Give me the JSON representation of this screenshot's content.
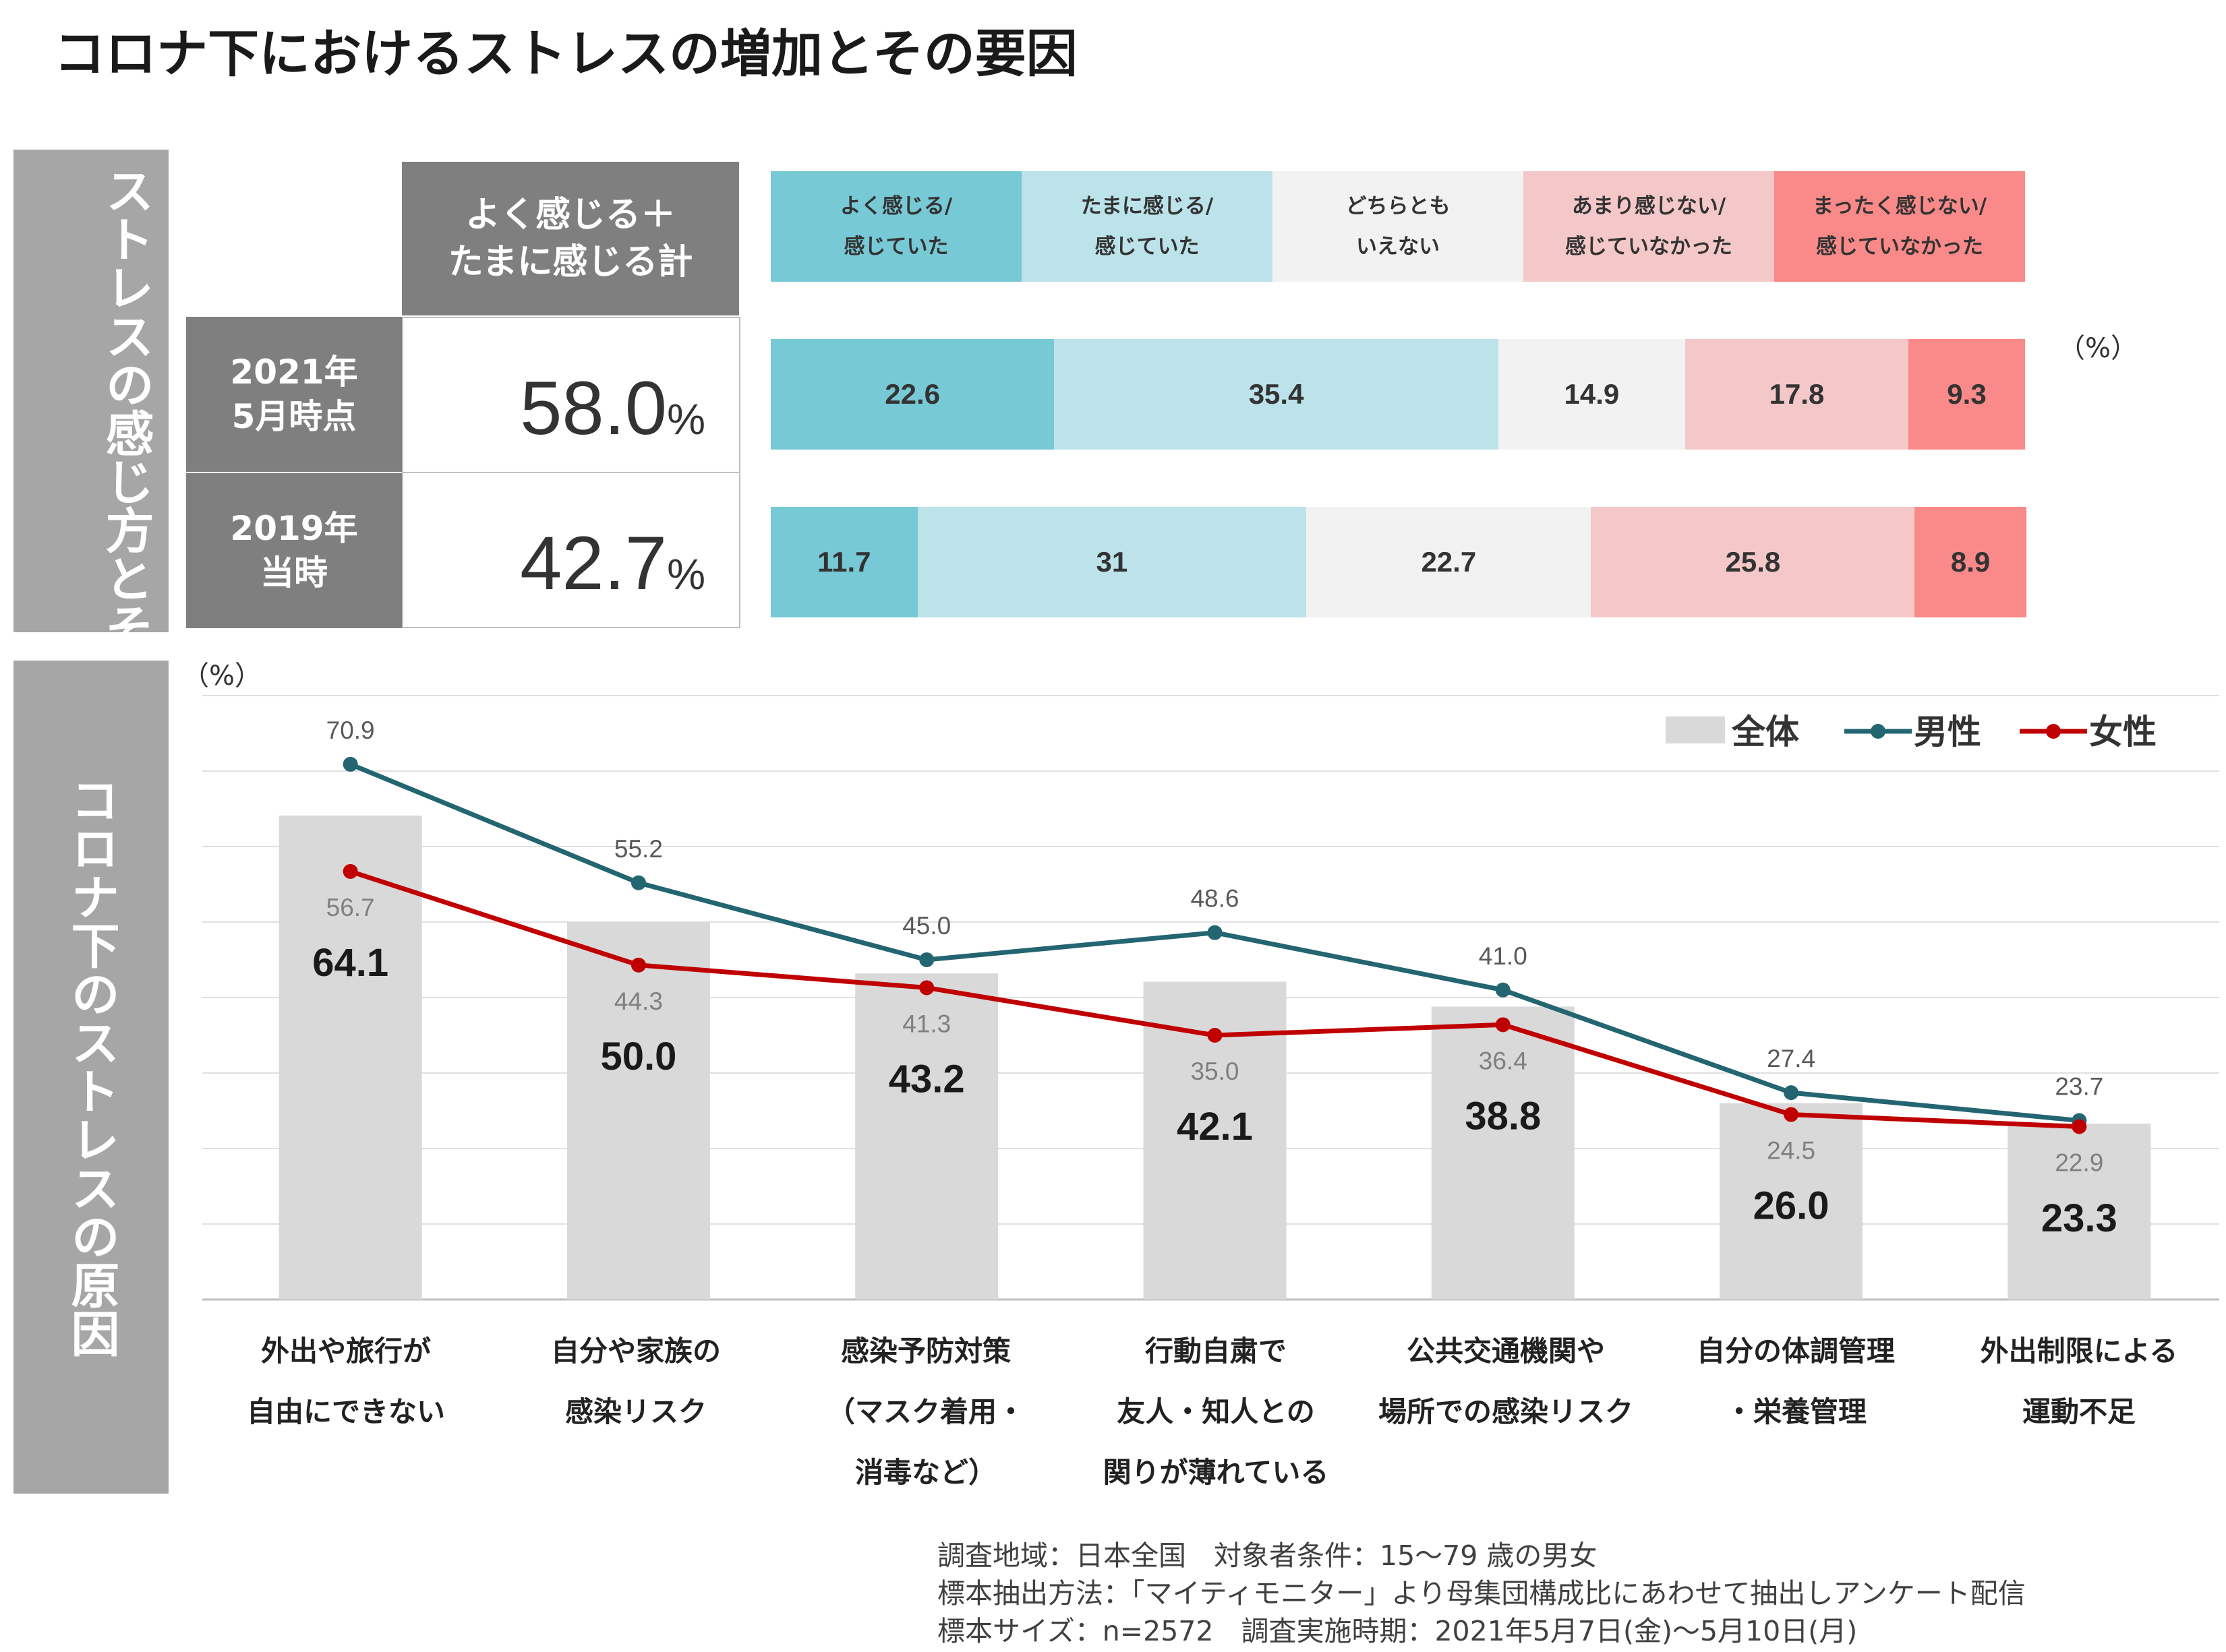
{
  "title": "コロナ下におけるストレスの増加とその要因",
  "panel_top": {
    "side_title": "ストレスの感じ方とその変化",
    "header_label_line1": "よく感じる＋",
    "header_label_line2": "たまに感じる計",
    "rows": [
      {
        "label_line1": "2021年",
        "label_line2": "5月時点",
        "total": "58.0",
        "unit": "%"
      },
      {
        "label_line1": "2019年",
        "label_line2": "当時",
        "total": "42.7",
        "unit": "%"
      }
    ],
    "legend": [
      {
        "line1": "よく感じる/",
        "line2": "感じていた",
        "color": "#76c9d5"
      },
      {
        "line1": "たまに感じる/",
        "line2": "感じていた",
        "color": "#bce3ea"
      },
      {
        "line1": "どちらとも",
        "line2": "いえない",
        "color": "#f2f2f2"
      },
      {
        "line1": "あまり感じない/",
        "line2": "感じていなかった",
        "color": "#f4c8c8"
      },
      {
        "line1": "まったく感じない/",
        "line2": "感じていなかった",
        "color": "#f98a89"
      }
    ],
    "unit_label": "（%）"
  },
  "panel_bottom": {
    "side_title": "コロナ下のストレスの原因",
    "unit_label": "（%）",
    "legend": {
      "all": "全体",
      "male": "男性",
      "female": "女性",
      "all_color": "#d9d9d9",
      "male_color": "#236570",
      "female_color": "#c00000"
    },
    "categories": [
      {
        "line1": "外出や旅行が",
        "line2": "自由にできない",
        "line3": ""
      },
      {
        "line1": "自分や家族の",
        "line2": "感染リスク",
        "line3": ""
      },
      {
        "line1": "感染予防対策",
        "line2": "（マスク着用・",
        "line3": "消毒など）"
      },
      {
        "line1": "行動自粛で",
        "line2": "友人・知人との",
        "line3": "関りが薄れている"
      },
      {
        "line1": "公共交通機関や",
        "line2": "場所での感染リスク",
        "line3": ""
      },
      {
        "line1": "自分の体調管理",
        "line2": "・栄養管理",
        "line3": ""
      },
      {
        "line1": "外出制限による",
        "line2": "運動不足",
        "line3": ""
      }
    ]
  },
  "chart_data": [
    {
      "type": "bar",
      "stacked": true,
      "orientation": "horizontal",
      "categories": [
        "2021年5月時点",
        "2019年当時"
      ],
      "series": [
        {
          "name": "よく感じる/感じていた",
          "values": [
            22.6,
            11.7
          ]
        },
        {
          "name": "たまに感じる/感じていた",
          "values": [
            35.4,
            31
          ]
        },
        {
          "name": "どちらともいえない",
          "values": [
            14.9,
            22.7
          ]
        },
        {
          "name": "あまり感じない/感じていなかった",
          "values": [
            17.8,
            25.8
          ]
        },
        {
          "name": "まったく感じない/感じていなかった",
          "values": [
            9.3,
            8.9
          ]
        }
      ],
      "value_labels": [
        [
          "22.6",
          "35.4",
          "14.9",
          "17.8",
          "9.3"
        ],
        [
          "11.7",
          "31",
          "22.7",
          "25.8",
          "8.9"
        ]
      ],
      "xlim": [
        0,
        100
      ]
    },
    {
      "type": "bar",
      "ylim": [
        0,
        80
      ],
      "grid": true,
      "legend_position": "top-right",
      "categories": [
        "外出や旅行が自由にできない",
        "自分や家族の感染リスク",
        "感染予防対策（マスク着用・消毒など）",
        "行動自粛で友人・知人との関りが薄れている",
        "公共交通機関や場所での感染リスク",
        "自分の体調管理・栄養管理",
        "外出制限による運動不足"
      ],
      "series": [
        {
          "name": "全体",
          "type": "bar",
          "values": [
            64.1,
            50.0,
            43.2,
            42.1,
            38.8,
            26.0,
            23.3
          ],
          "labels": [
            "64.1",
            "50.0",
            "43.2",
            "42.1",
            "38.8",
            "26.0",
            "23.3"
          ]
        },
        {
          "name": "男性",
          "type": "line",
          "values": [
            70.9,
            55.2,
            45.0,
            48.6,
            41.0,
            27.4,
            23.7
          ],
          "labels": [
            "70.9",
            "55.2",
            "45.0",
            "48.6",
            "41.0",
            "27.4",
            "23.7"
          ]
        },
        {
          "name": "女性",
          "type": "line",
          "values": [
            56.7,
            44.3,
            41.3,
            35.0,
            36.4,
            24.5,
            22.9
          ],
          "labels": [
            "56.7",
            "44.3",
            "41.3",
            "35.0",
            "36.4",
            "24.5",
            "22.9"
          ]
        }
      ]
    }
  ],
  "footnote": [
    "調査地域：日本全国　対象者条件：15～79 歳の男女",
    "標本抽出方法：「マイティモニター」より母集団構成比にあわせて抽出しアンケート配信",
    "標本サイズ：n=2572　調査実施時期：2021年5月7日(金)～5月10日(月)"
  ]
}
